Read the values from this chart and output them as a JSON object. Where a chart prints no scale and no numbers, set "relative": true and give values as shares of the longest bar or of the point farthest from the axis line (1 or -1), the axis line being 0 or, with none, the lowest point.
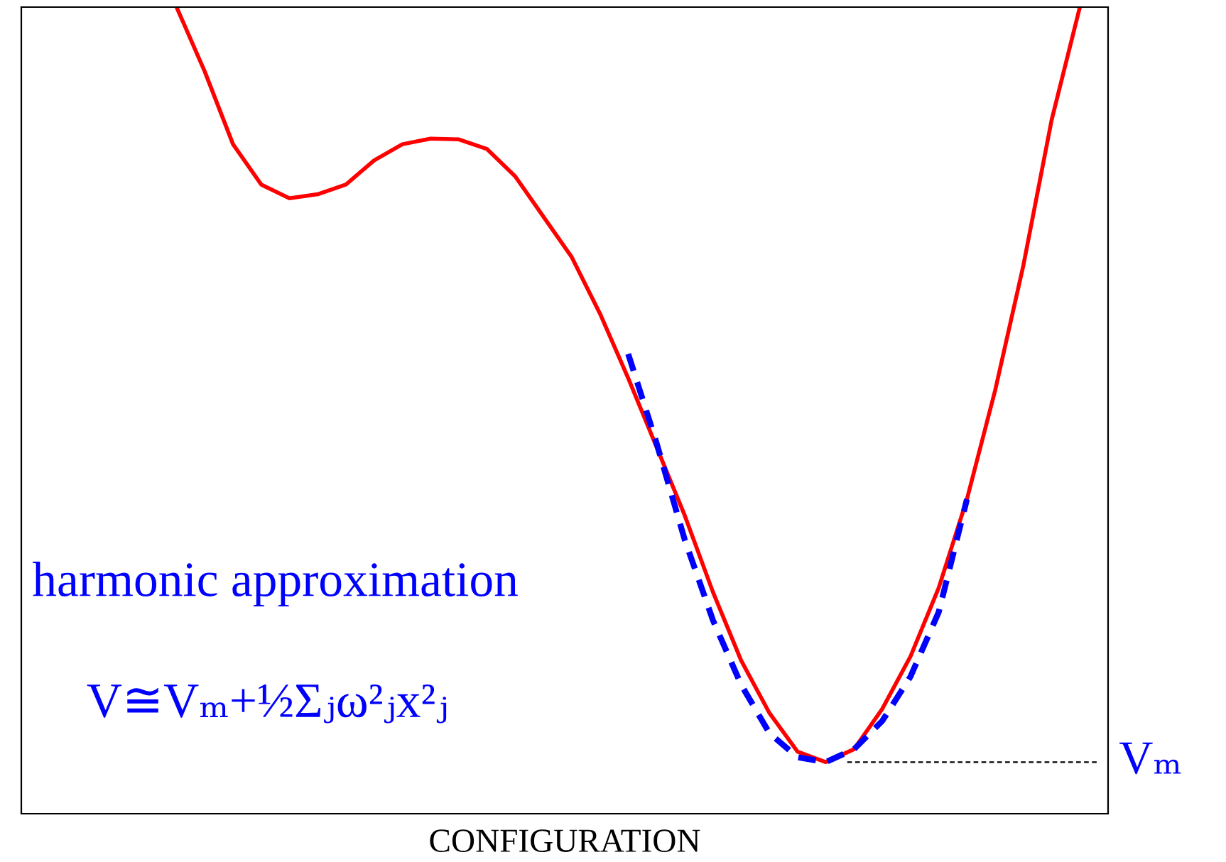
{
  "chart_data": {
    "type": "line",
    "relative": true,
    "xlabel": "CONFIGURATION",
    "categories": [
      null,
      null,
      null,
      null,
      null,
      null,
      null,
      null,
      null,
      null,
      null,
      null,
      null,
      null,
      null,
      null,
      null,
      null,
      null,
      null,
      null,
      null,
      null,
      null,
      null,
      null,
      null,
      null,
      null,
      null,
      null,
      null,
      null
    ],
    "series": [
      {
        "color": "#ff0000",
        "line_style": "solid",
        "values": [
          1.0,
          0.92,
          0.83,
          0.78,
          0.763,
          0.768,
          0.78,
          0.81,
          0.83,
          0.837,
          0.836,
          0.824,
          0.79,
          0.74,
          0.69,
          0.62,
          0.54,
          0.455,
          0.37,
          0.275,
          0.19,
          0.125,
          0.077,
          0.064,
          0.08,
          0.13,
          0.195,
          0.28,
          0.39,
          0.525,
          0.68,
          0.86,
          1.0
        ]
      },
      {
        "color": "#0000ff",
        "line_style": "dashed",
        "values": [
          null,
          null,
          null,
          null,
          null,
          null,
          null,
          null,
          null,
          null,
          null,
          null,
          null,
          null,
          null,
          null,
          0.57,
          0.46,
          0.34,
          0.24,
          0.16,
          0.1,
          0.07,
          0.064,
          0.08,
          0.115,
          0.17,
          0.25,
          0.39,
          null,
          null,
          null,
          null
        ]
      }
    ],
    "ref_lines": [
      {
        "axis": "y",
        "value": 0.064,
        "label": "Vₘ",
        "color": "#000000",
        "line_style": "dashed"
      }
    ],
    "annotations": [
      "harmonic approximation",
      "V≅Vₘ+½Σⱼω²ⱼx²ⱼ"
    ]
  }
}
